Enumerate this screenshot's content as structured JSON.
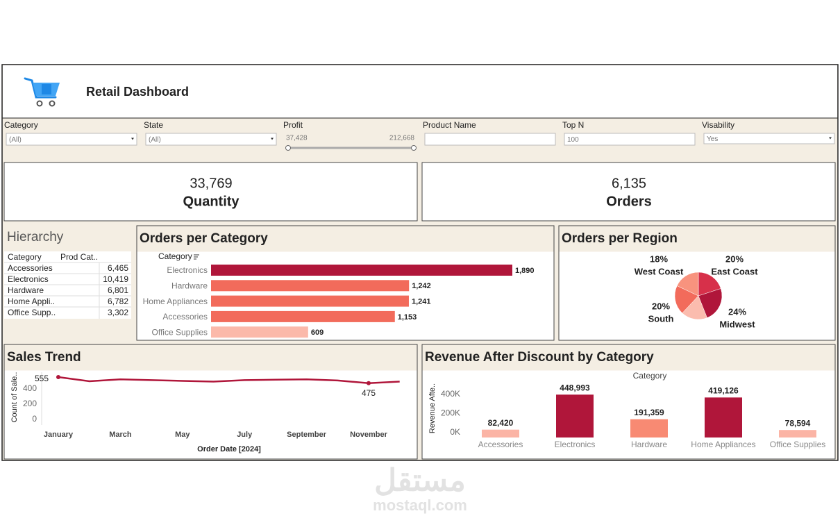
{
  "header": {
    "title": "Retail Dashboard"
  },
  "filters": [
    {
      "label": "Category",
      "value": "(All)",
      "dropdown": true
    },
    {
      "label": "State",
      "value": "(All)",
      "dropdown": true
    },
    {
      "label": "Profit",
      "min": "37,428",
      "max": "212,668"
    },
    {
      "label": "Product Name"
    },
    {
      "label": "Top N",
      "value": "100"
    },
    {
      "label": "Visability",
      "value": "Yes",
      "dropdown": true
    }
  ],
  "kpis": [
    {
      "value": "33,769",
      "label": "Quantity"
    },
    {
      "value": "6,135",
      "label": "Orders"
    }
  ],
  "hierarchy": {
    "title": "Hierarchy",
    "columns": [
      "Category",
      "Prod Cat.."
    ],
    "rows": [
      [
        "Accessories",
        "6,465"
      ],
      [
        "Electronics",
        "10,419"
      ],
      [
        "Hardware",
        "6,801"
      ],
      [
        "Home Appli..",
        "6,782"
      ],
      [
        "Office Supp..",
        "3,302"
      ]
    ]
  },
  "chart_data": [
    {
      "type": "bar",
      "orientation": "horizontal",
      "title": "Orders per Category",
      "y_label": "Category",
      "categories": [
        "Electronics",
        "Hardware",
        "Home Appliances",
        "Accessories",
        "Office Supplies"
      ],
      "values": [
        1890,
        1242,
        1241,
        1153,
        609
      ],
      "value_labels": [
        "1,890",
        "1,242",
        "1,241",
        "1,153",
        "609"
      ],
      "colors": [
        "#b0163a",
        "#f26b5b",
        "#f26b5b",
        "#f26b5b",
        "#fbb9aa"
      ]
    },
    {
      "type": "pie",
      "title": "Orders per Region",
      "categories": [
        "East Coast",
        "Midwest",
        null,
        "South",
        "West Coast"
      ],
      "values": [
        20,
        24,
        18,
        20,
        18
      ],
      "value_labels": [
        "20%",
        "24%",
        null,
        "20%",
        "18%"
      ],
      "colors": [
        "#d7304a",
        "#b0163a",
        "#fbbcae",
        "#f26b5b",
        "#f8937e"
      ]
    },
    {
      "type": "line",
      "title": "Sales Trend",
      "x_label": "Order Date [2024]",
      "y_label": "Count of Sale..",
      "categories": [
        "January",
        null,
        "March",
        null,
        "May",
        null,
        "July",
        null,
        "September",
        null,
        "November",
        null
      ],
      "values": [
        555,
        500,
        525,
        515,
        505,
        495,
        515,
        520,
        525,
        510,
        475,
        495
      ],
      "value_labels": [
        "555",
        null,
        null,
        null,
        null,
        null,
        null,
        null,
        null,
        null,
        "475",
        null
      ],
      "color": "#b0163a",
      "ylim": [
        0,
        600
      ],
      "yticks": [
        0,
        200,
        400
      ]
    },
    {
      "type": "bar",
      "orientation": "vertical",
      "title": "Revenue After Discount by Category",
      "x_label": "Category",
      "y_label": "Revenue Afte..",
      "categories": [
        "Accessories",
        "Electronics",
        "Hardware",
        "Home Appliances",
        "Office Supplies"
      ],
      "values": [
        82420,
        448993,
        191359,
        419126,
        78594
      ],
      "value_labels": [
        "82,420",
        "448,993",
        "191,359",
        "419,126",
        "78,594"
      ],
      "colors": [
        "#fbb4a5",
        "#b0163a",
        "#f88a73",
        "#b0163a",
        "#fbb4a5"
      ],
      "ylim": [
        0,
        480000
      ],
      "yticks": [
        {
          "value": 0,
          "label": "0K"
        },
        {
          "value": 200000,
          "label": "200K"
        },
        {
          "value": 400000,
          "label": "400K"
        }
      ]
    }
  ],
  "watermark": {
    "arabic": "مستقل",
    "latin": "mostaql.com"
  }
}
